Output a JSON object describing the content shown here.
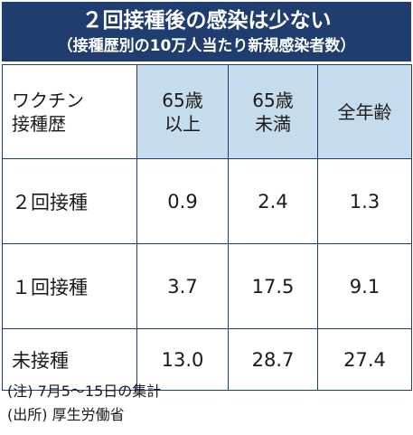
{
  "title": "２回接種後の感染は少ない",
  "subtitle": "（接種歴別の10万人当たり新規感染者数）",
  "chart_data": {
    "type": "table",
    "corner_label": [
      "ワクチン",
      "接種歴"
    ],
    "columns": [
      [
        "65歳",
        "以上"
      ],
      [
        "65歳",
        "未満"
      ],
      [
        "全年齢"
      ]
    ],
    "rows": [
      {
        "label": "２回接種",
        "values": [
          "0.9",
          "2.4",
          "1.3"
        ]
      },
      {
        "label": "１回接種",
        "values": [
          "3.7",
          "17.5",
          "9.1"
        ]
      },
      {
        "label": "未接種",
        "values": [
          "13.0",
          "28.7",
          "27.4"
        ]
      }
    ]
  },
  "notes": [
    "(注) 7月5～15日の集計",
    "(出所) 厚生労働省"
  ],
  "colors": {
    "header_bg": "#1f3d6e",
    "column_header_bg": "#c6dcec"
  }
}
